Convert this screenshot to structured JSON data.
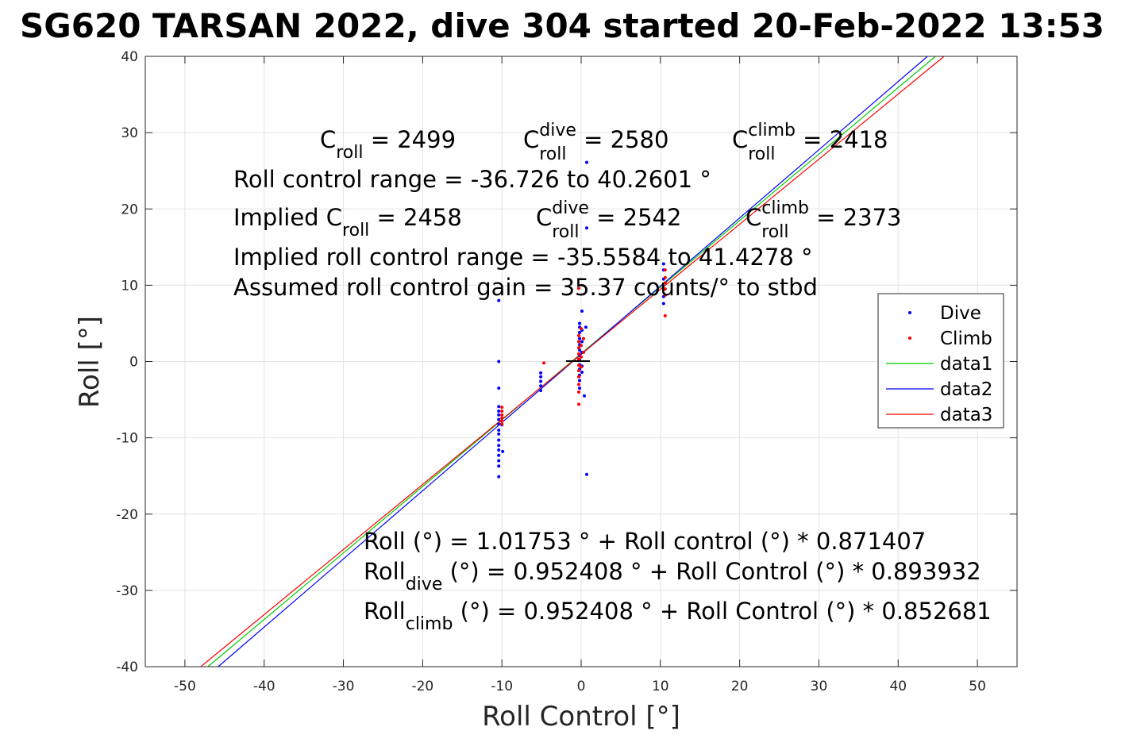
{
  "chart_data": {
    "type": "scatter",
    "title": "SG620 TARSAN 2022, dive 304 started 20-Feb-2022 13:53",
    "xlabel": "Roll Control [°]",
    "ylabel": "Roll [°]",
    "xlim": [
      -55,
      55
    ],
    "ylim": [
      -40,
      40
    ],
    "xticks": [
      "-50",
      "-40",
      "-30",
      "-20",
      "-10",
      "0",
      "10",
      "20",
      "30",
      "40",
      "50"
    ],
    "yticks": [
      "-40",
      "-30",
      "-20",
      "-10",
      "0",
      "10",
      "20",
      "30",
      "40"
    ],
    "grid": true,
    "legend_position": "right",
    "colors": {
      "dive": "#0000ff",
      "climb": "#ff0000",
      "data1": "#00cc00",
      "data2": "#0000ff",
      "data3": "#ff0000"
    },
    "series": [
      {
        "name": "Dive",
        "type": "scatter",
        "color": "#0000ff",
        "points": [
          [
            -10.4,
            8.0
          ],
          [
            -10.4,
            0.0
          ],
          [
            -10.4,
            -3.5
          ],
          [
            -10.4,
            -5.9
          ],
          [
            -10.4,
            -6.5
          ],
          [
            -10.4,
            -7.0
          ],
          [
            -10.4,
            -7.6
          ],
          [
            -10.4,
            -8.2
          ],
          [
            -10.4,
            -9.0
          ],
          [
            -10.4,
            -9.5
          ],
          [
            -10.4,
            -10.3
          ],
          [
            -10.4,
            -11.0
          ],
          [
            -10.4,
            -11.6
          ],
          [
            -10.4,
            -12.3
          ],
          [
            -10.4,
            -13.0
          ],
          [
            -10.4,
            -13.7
          ],
          [
            -10.4,
            -15.1
          ],
          [
            -10.0,
            -8.3
          ],
          [
            -9.9,
            -11.8
          ],
          [
            -5.1,
            -1.5
          ],
          [
            -5.1,
            -2.0
          ],
          [
            -5.1,
            -2.6
          ],
          [
            -5.1,
            -3.2
          ],
          [
            -5.1,
            -3.8
          ],
          [
            -0.2,
            5.0
          ],
          [
            -0.2,
            4.5
          ],
          [
            -0.2,
            3.8
          ],
          [
            -0.2,
            3.0
          ],
          [
            -0.2,
            2.2
          ],
          [
            -0.2,
            1.5
          ],
          [
            -0.2,
            0.8
          ],
          [
            -0.2,
            0.2
          ],
          [
            -0.2,
            -0.4
          ],
          [
            -0.2,
            -1.0
          ],
          [
            -0.2,
            -1.8
          ],
          [
            -0.2,
            -2.5
          ],
          [
            -0.2,
            -3.5
          ],
          [
            0.1,
            6.6
          ],
          [
            0.1,
            4.1
          ],
          [
            0.1,
            2.6
          ],
          [
            0.1,
            1.2
          ],
          [
            0.1,
            -0.6
          ],
          [
            0.1,
            -1.4
          ],
          [
            0.4,
            -4.5
          ],
          [
            0.6,
            4.5
          ],
          [
            0.7,
            17.5
          ],
          [
            0.7,
            26.1
          ],
          [
            0.7,
            -14.8
          ],
          [
            10.4,
            12.8
          ],
          [
            10.4,
            12.0
          ],
          [
            10.4,
            10.8
          ],
          [
            10.4,
            9.5
          ],
          [
            10.4,
            8.5
          ],
          [
            10.4,
            7.6
          ]
        ]
      },
      {
        "name": "Climb",
        "type": "scatter",
        "color": "#ff0000",
        "points": [
          [
            -10.0,
            -6.0
          ],
          [
            -10.0,
            -6.5
          ],
          [
            -10.0,
            -7.0
          ],
          [
            -10.0,
            -7.4
          ],
          [
            -10.0,
            -7.8
          ],
          [
            -10.0,
            -8.2
          ],
          [
            -4.7,
            -0.2
          ],
          [
            -0.3,
            9.6
          ],
          [
            -0.3,
            3.4
          ],
          [
            -0.3,
            2.6
          ],
          [
            -0.3,
            1.8
          ],
          [
            -0.3,
            1.0
          ],
          [
            -0.3,
            0.3
          ],
          [
            -0.3,
            -0.5
          ],
          [
            -0.3,
            -1.2
          ],
          [
            -0.3,
            -2.0
          ],
          [
            -0.3,
            -3.0
          ],
          [
            -0.3,
            -4.0
          ],
          [
            -0.3,
            -5.6
          ],
          [
            0.0,
            4.3
          ],
          [
            0.0,
            2.1
          ],
          [
            0.0,
            0.6
          ],
          [
            0.0,
            -0.7
          ],
          [
            0.3,
            3.0
          ],
          [
            0.3,
            1.2
          ],
          [
            10.6,
            11.0
          ],
          [
            10.6,
            10.3
          ],
          [
            10.6,
            9.5
          ],
          [
            10.6,
            8.7
          ],
          [
            10.6,
            12.0
          ],
          [
            10.6,
            6.0
          ]
        ]
      },
      {
        "name": "data1",
        "type": "line",
        "color": "#00cc00",
        "x": [
          -47.1,
          44.7
        ],
        "y": [
          -40,
          40
        ]
      },
      {
        "name": "data2",
        "type": "line",
        "color": "#0000ff",
        "x": [
          -45.8,
          43.7
        ],
        "y": [
          -40,
          40
        ]
      },
      {
        "name": "data3",
        "type": "line",
        "color": "#ff0000",
        "x": [
          -48.0,
          45.8
        ],
        "y": [
          -40,
          40
        ]
      }
    ],
    "annotations": {
      "line1": [
        {
          "base": "C",
          "sub": "roll",
          "rest": " = 2499"
        },
        {
          "base": "C",
          "sub": "roll",
          "sup": "dive",
          "rest": " = 2580"
        },
        {
          "base": "C",
          "sub": "roll",
          "sup": "climb",
          "rest": " = 2418"
        }
      ],
      "line2": "Roll control range = -36.726 to 40.2601 °",
      "line3": [
        {
          "base": "Implied C",
          "sub": "roll",
          "rest": " = 2458"
        },
        {
          "base": "C",
          "sub": "roll",
          "sup": "dive",
          "rest": " = 2542"
        },
        {
          "base": "C",
          "sub": "roll",
          "sup": "climb",
          "rest": " = 2373"
        }
      ],
      "line4": "Implied roll control range = -35.5584 to 41.4278 °",
      "line5": "Assumed roll control gain = 35.37 counts/° to stbd",
      "eq1": "Roll (°) = 1.01753 ° + Roll control (°) * 0.871407",
      "eq2": {
        "base": "Roll",
        "sub": "dive",
        "rest": " (°) = 0.952408 ° + Roll Control (°) * 0.893932"
      },
      "eq3": {
        "base": "Roll",
        "sub": "climb",
        "rest": " (°) = 0.952408 ° + Roll Control (°) * 0.852681"
      }
    }
  }
}
